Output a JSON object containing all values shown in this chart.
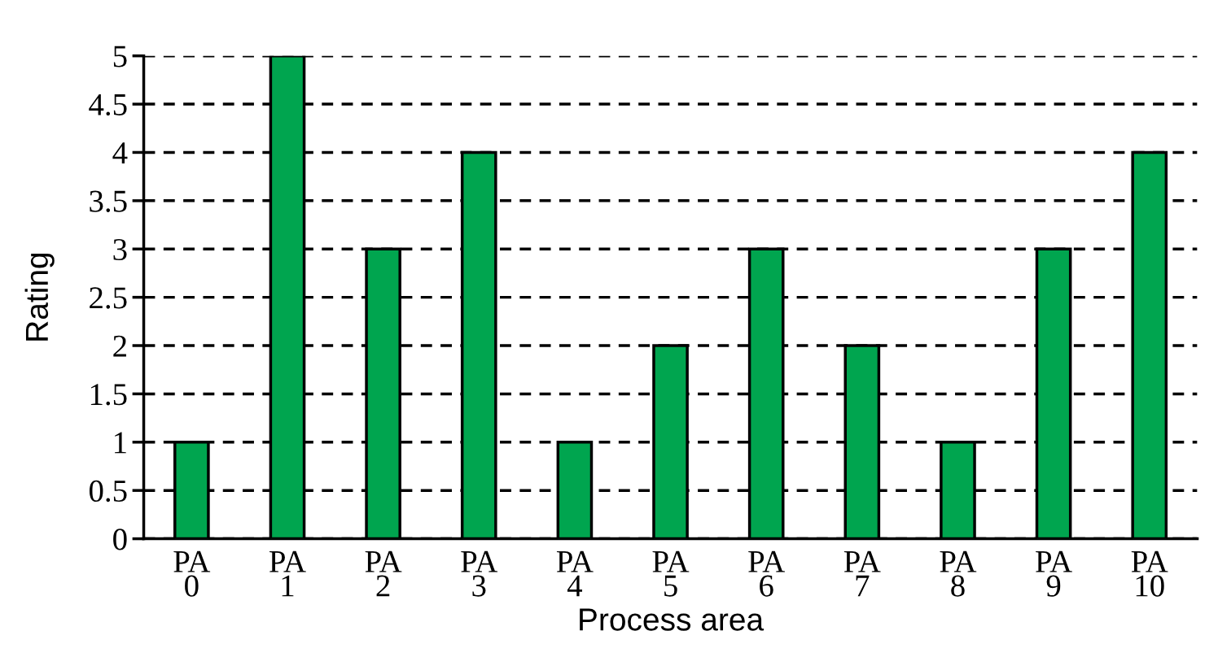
{
  "chart_data": {
    "type": "bar",
    "xlabel": "Process area",
    "ylabel": "Rating",
    "categories": [
      "PA\n0",
      "PA\n1",
      "PA\n2",
      "PA\n3",
      "PA\n4",
      "PA\n5",
      "PA\n6",
      "PA\n7",
      "PA\n8",
      "PA\n9",
      "PA\n10"
    ],
    "values": [
      1,
      5,
      3,
      4,
      1,
      2,
      3,
      2,
      1,
      3,
      4
    ],
    "color": "#00a54f",
    "ylim": [
      0,
      5
    ],
    "yticks": [
      0,
      0.5,
      1,
      1.5,
      2,
      2.5,
      3,
      3.5,
      4,
      4.5,
      5
    ],
    "grid": "y"
  }
}
